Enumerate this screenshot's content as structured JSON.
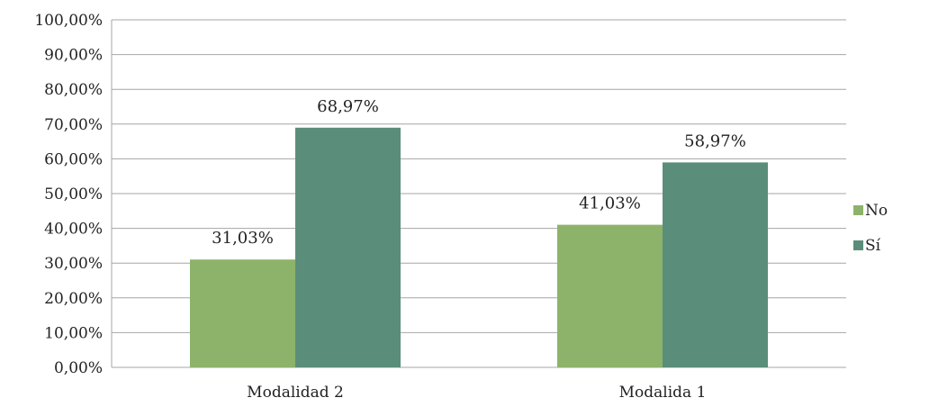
{
  "chart_data": {
    "type": "bar",
    "categories": [
      "Modalidad 2",
      "Modalida 1"
    ],
    "series": [
      {
        "name": "No",
        "values": [
          31.03,
          41.03
        ],
        "labels": [
          "31,03%",
          "41,03%"
        ],
        "color": "#8db36a"
      },
      {
        "name": "Sí",
        "values": [
          68.97,
          58.97
        ],
        "labels": [
          "68,97%",
          "58,97%"
        ],
        "color": "#5a8e7b"
      }
    ],
    "title": "",
    "xlabel": "",
    "ylabel": "",
    "ylim": [
      0,
      100
    ],
    "yticks": [
      0,
      10,
      20,
      30,
      40,
      50,
      60,
      70,
      80,
      90,
      100
    ],
    "ytick_labels": [
      "0,00%",
      "10,00%",
      "20,00%",
      "30,00%",
      "40,00%",
      "50,00%",
      "60,00%",
      "70,00%",
      "80,00%",
      "90,00%",
      "100,00%"
    ],
    "grid": true,
    "legend_position": "right",
    "gridline_color": "#a6a6a6"
  }
}
